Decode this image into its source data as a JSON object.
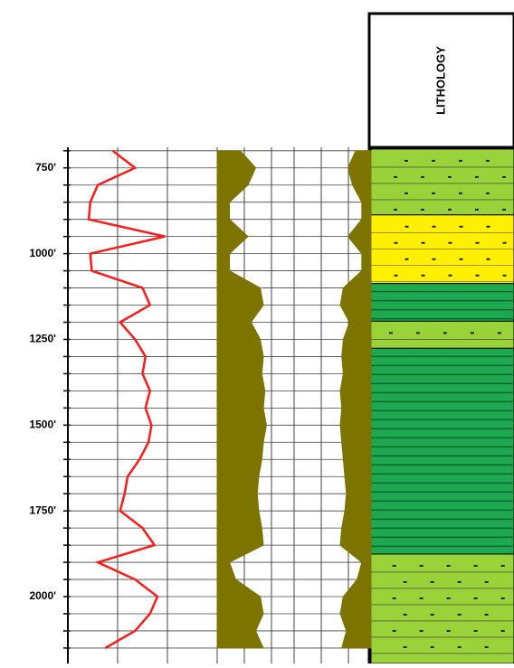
{
  "chart_data": {
    "type": "well-log",
    "ylim": [
      690,
      2195
    ],
    "yticks": [
      {
        "value": 750,
        "label": "750'"
      },
      {
        "value": 1000,
        "label": "1000'"
      },
      {
        "value": 1250,
        "label": "1250'"
      },
      {
        "value": 1500,
        "label": "1500'"
      },
      {
        "value": 1750,
        "label": "1750'"
      },
      {
        "value": 2000,
        "label": "2000'"
      }
    ],
    "minor_yticks": [
      700,
      800,
      850,
      900,
      950,
      1050,
      1100,
      1150,
      1200,
      1300,
      1350,
      1400,
      1450,
      1550,
      1600,
      1650,
      1700,
      1800,
      1850,
      1900,
      1950,
      2050,
      2100,
      2150
    ],
    "grid": true,
    "depth": [
      700,
      750,
      800,
      850,
      900,
      950,
      1000,
      1050,
      1100,
      1150,
      1200,
      1250,
      1300,
      1350,
      1400,
      1450,
      1500,
      1550,
      1600,
      1650,
      1700,
      1750,
      1800,
      1850,
      1900,
      1950,
      2000,
      2050,
      2100,
      2150
    ],
    "series": [
      {
        "color": "#ff1a1a",
        "track": 1,
        "xlim": [
          0,
          100
        ],
        "values": [
          30,
          45,
          20,
          15,
          14,
          65,
          15,
          16,
          50,
          55,
          35,
          45,
          52,
          50,
          55,
          52,
          56,
          54,
          48,
          40,
          38,
          35,
          50,
          58,
          20,
          45,
          60,
          55,
          45,
          25
        ]
      },
      {
        "color": "#7d7400",
        "track": 2,
        "side": "left",
        "xlim": [
          0,
          100
        ],
        "values": [
          15,
          25,
          20,
          8,
          8,
          20,
          8,
          8,
          28,
          30,
          22,
          28,
          30,
          29,
          31,
          30,
          32,
          30,
          29,
          27,
          26,
          27,
          29,
          30,
          8,
          12,
          28,
          30,
          25,
          30
        ]
      },
      {
        "color": "#7d7400",
        "track": 2,
        "side": "right",
        "xlim": [
          0,
          100
        ],
        "values": [
          10,
          15,
          12,
          6,
          6,
          15,
          6,
          6,
          18,
          20,
          14,
          18,
          19,
          18,
          20,
          19,
          20,
          19,
          18,
          17,
          16,
          17,
          19,
          20,
          6,
          9,
          18,
          20,
          16,
          19
        ]
      }
    ],
    "lithology": {
      "title": "LITHOLOGY",
      "tops": [
        695,
        887,
        1087,
        1197,
        1276,
        1876
      ],
      "bases": [
        887,
        1087,
        1197,
        1276,
        1876,
        2195
      ],
      "colors": [
        "#9ad23a",
        "#ffef00",
        "#1fa84f",
        "#9ad23a",
        "#1fa84f",
        "#9ad23a"
      ],
      "dotted": [
        true,
        true,
        false,
        true,
        false,
        true
      ]
    }
  }
}
